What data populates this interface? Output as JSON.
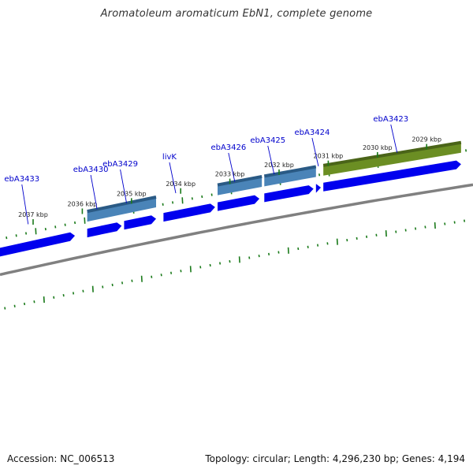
{
  "title": "Aromatoleum aromaticum EbN1, complete genome",
  "footer": {
    "accession": "Accession: NC_006513",
    "summary": "Topology: circular; Length: 4,296,230 bp; Genes: 4,194"
  },
  "colors": {
    "forward_cds": "#0000ee",
    "gene_light": "#4a84b8",
    "gene_dark": "#2a5a85",
    "gene_olive": "#6b8e23",
    "backbone": "#808080",
    "tick": "#1a7a1a",
    "label": "#0000cc"
  },
  "scale_labels": [
    {
      "text": "2037 kbp",
      "pos": 2037.0
    },
    {
      "text": "2036 kbp",
      "pos": 2036.0
    },
    {
      "text": "2035 kbp",
      "pos": 2035.0
    },
    {
      "text": "2034 kbp",
      "pos": 2034.0
    },
    {
      "text": "2033 kbp",
      "pos": 2033.0
    },
    {
      "text": "2032 kbp",
      "pos": 2032.0
    },
    {
      "text": "2031 kbp",
      "pos": 2031.0
    },
    {
      "text": "2030 kbp",
      "pos": 2030.0
    },
    {
      "text": "2029 kbp",
      "pos": 2029.0
    }
  ],
  "gene_labels": [
    {
      "text": "ebA3433",
      "pos": 2037.1
    },
    {
      "text": "ebA3430",
      "pos": 2035.7
    },
    {
      "text": "ebA3429",
      "pos": 2035.1
    },
    {
      "text": "livK",
      "pos": 2034.1
    },
    {
      "text": "ebA3426",
      "pos": 2032.9
    },
    {
      "text": "ebA3425",
      "pos": 2032.1
    },
    {
      "text": "ebA3424",
      "pos": 2031.2
    },
    {
      "text": "ebA3423",
      "pos": 2029.6
    }
  ],
  "cds": [
    {
      "start": 2037.7,
      "end": 2036.15
    },
    {
      "start": 2035.9,
      "end": 2035.2
    },
    {
      "start": 2035.15,
      "end": 2034.5
    },
    {
      "start": 2034.35,
      "end": 2033.3
    },
    {
      "start": 2033.25,
      "end": 2032.4
    },
    {
      "start": 2032.3,
      "end": 2031.3
    },
    {
      "start": 2031.25,
      "end": 2031.15
    },
    {
      "start": 2031.1,
      "end": 2028.3
    }
  ],
  "genes": [
    {
      "start": 2035.9,
      "end": 2034.5,
      "color": "light"
    },
    {
      "start": 2033.25,
      "end": 2032.35,
      "color": "light"
    },
    {
      "start": 2032.3,
      "end": 2031.25,
      "color": "light"
    },
    {
      "start": 2031.1,
      "end": 2028.3,
      "color": "olive"
    }
  ]
}
